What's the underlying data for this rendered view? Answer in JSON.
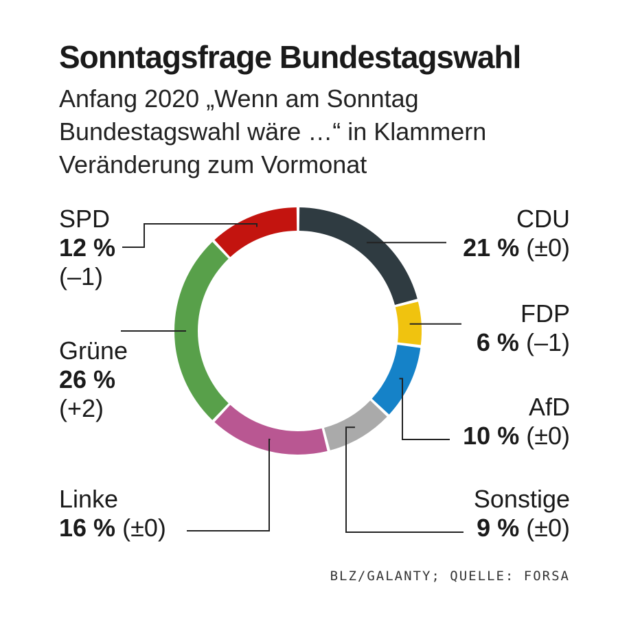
{
  "title": "Sonntagsfrage Bundestagswahl",
  "subtitle_lines": [
    "Anfang 2020 „Wenn am Sonntag",
    "Bundestagswahl wäre …“ in Klammern",
    "Veränderung zum Vormonat"
  ],
  "source": "BLZ/GALANTY; QUELLE: FORSA",
  "chart_data": {
    "type": "pie",
    "style": "donut",
    "unit": "%",
    "slices": [
      {
        "name": "CDU",
        "value": 21,
        "value_label": "21 %",
        "change": "(±0)",
        "color": "#2f3b41"
      },
      {
        "name": "FDP",
        "value": 6,
        "value_label": "6 %",
        "change": "(–1)",
        "color": "#f0c30f"
      },
      {
        "name": "AfD",
        "value": 10,
        "value_label": "10 %",
        "change": "(±0)",
        "color": "#1582c8"
      },
      {
        "name": "Sonstige",
        "value": 9,
        "value_label": "9 %",
        "change": "(±0)",
        "color": "#aaaaaa"
      },
      {
        "name": "Linke",
        "value": 16,
        "value_label": "16 %",
        "change": "(±0)",
        "color": "#b95792"
      },
      {
        "name": "Grüne",
        "value": 26,
        "value_label": "26 %",
        "change": "(+2)",
        "color": "#58a04a"
      },
      {
        "name": "SPD",
        "value": 12,
        "value_label": "12 %",
        "change": "(–1)",
        "color": "#c3140f"
      }
    ]
  }
}
